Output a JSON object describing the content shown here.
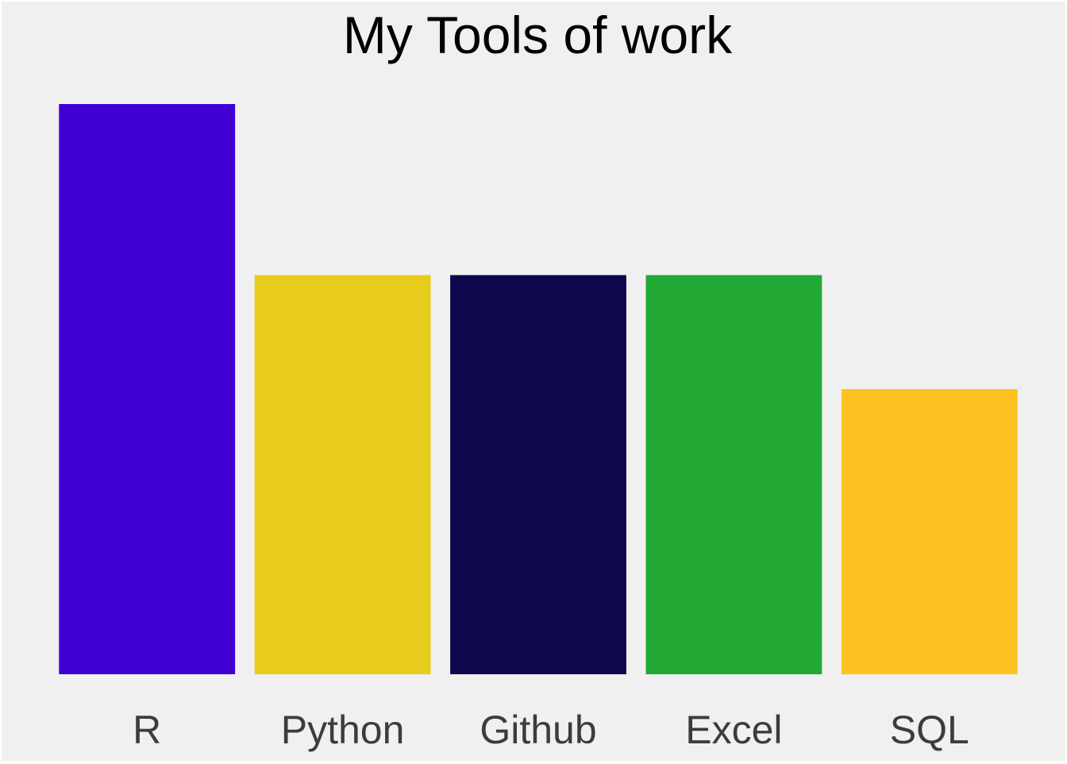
{
  "chart_data": {
    "type": "bar",
    "title": "My Tools of work",
    "xlabel": "",
    "ylabel": "",
    "categories": [
      "R",
      "Python",
      "Github",
      "Excel",
      "SQL"
    ],
    "values": [
      5,
      3.5,
      3.5,
      3.5,
      2.5
    ],
    "colors": [
      "#4000d4",
      "#e8cc1c",
      "#0e074e",
      "#22a834",
      "#fdc21f"
    ],
    "ylim": [
      0,
      5
    ],
    "grid": false,
    "legend": "none",
    "y_axis_visible": false,
    "background": "#f0f0f0"
  }
}
